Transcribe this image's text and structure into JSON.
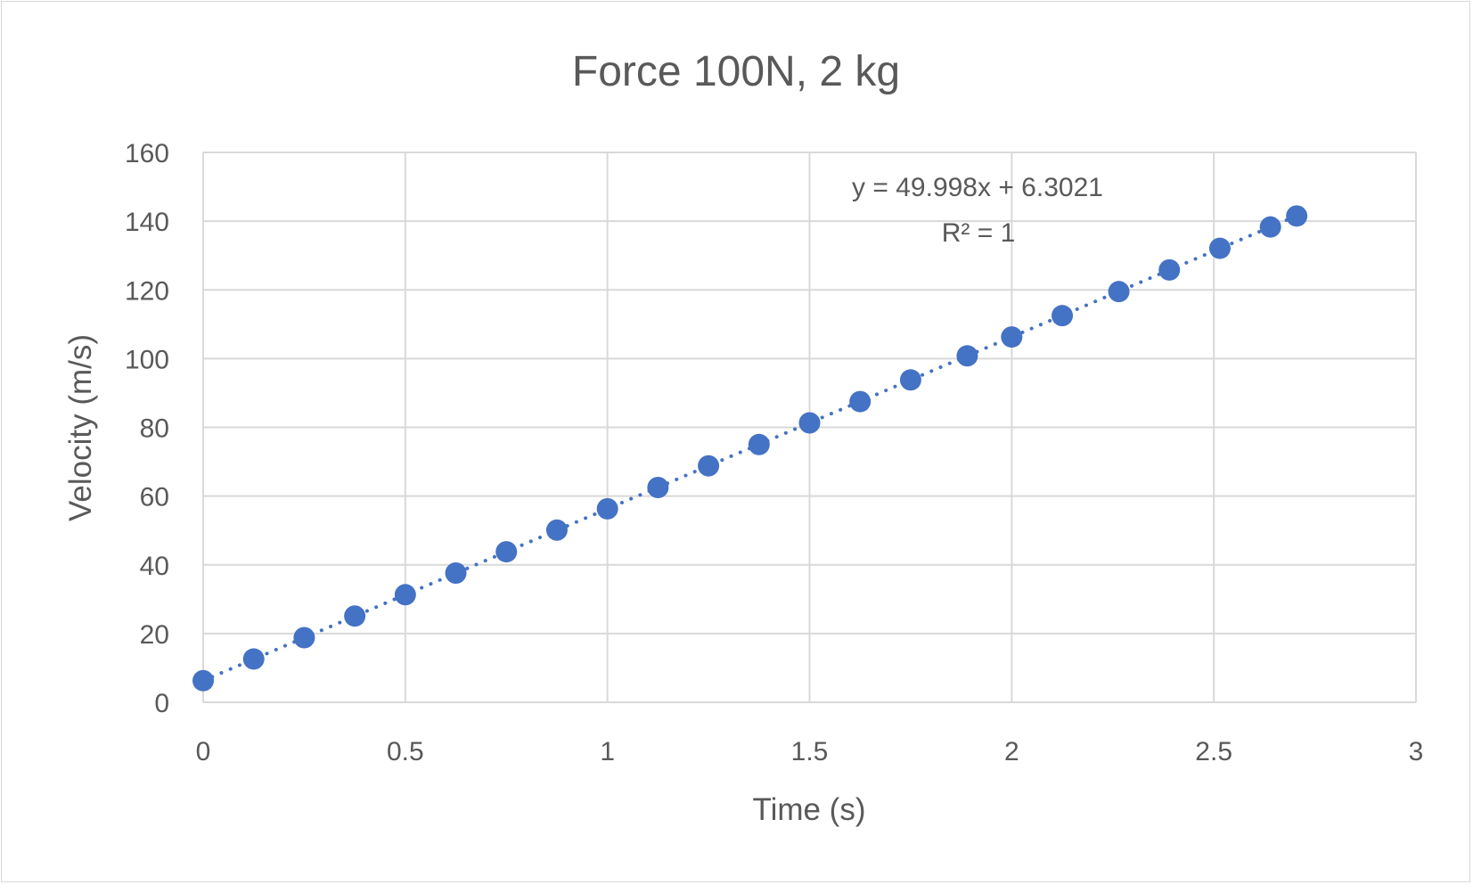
{
  "chart_data": {
    "type": "scatter",
    "title": "Force 100N, 2 kg",
    "xlabel": "Time (s)",
    "ylabel": "Velocity (m/s)",
    "xlim": [
      0,
      3
    ],
    "ylim": [
      0,
      160
    ],
    "x_ticks": [
      "0",
      "0.5",
      "1",
      "1.5",
      "2",
      "2.5",
      "3"
    ],
    "y_ticks": [
      "0",
      "20",
      "40",
      "60",
      "80",
      "100",
      "120",
      "140",
      "160"
    ],
    "grid": true,
    "legend": "none",
    "series": [
      {
        "color": "#4472c4",
        "x": [
          0,
          0.125,
          0.25,
          0.375,
          0.5,
          0.625,
          0.75,
          0.875,
          1.0,
          1.125,
          1.25,
          1.375,
          1.5,
          1.625,
          1.75,
          1.89,
          2.0,
          2.125,
          2.265,
          2.39,
          2.515,
          2.64,
          2.705
        ],
        "y": [
          6.3,
          12.6,
          18.8,
          25.1,
          31.3,
          37.6,
          43.8,
          50.1,
          56.3,
          62.5,
          68.8,
          75.0,
          81.3,
          87.5,
          93.8,
          100.8,
          106.3,
          112.5,
          119.5,
          125.8,
          132.1,
          138.3,
          141.5
        ]
      }
    ],
    "trendline": {
      "type": "linear",
      "slope": 49.998,
      "intercept": 6.3021,
      "equation": "y = 49.998x + 6.3021",
      "r_squared": "R² = 1"
    }
  }
}
